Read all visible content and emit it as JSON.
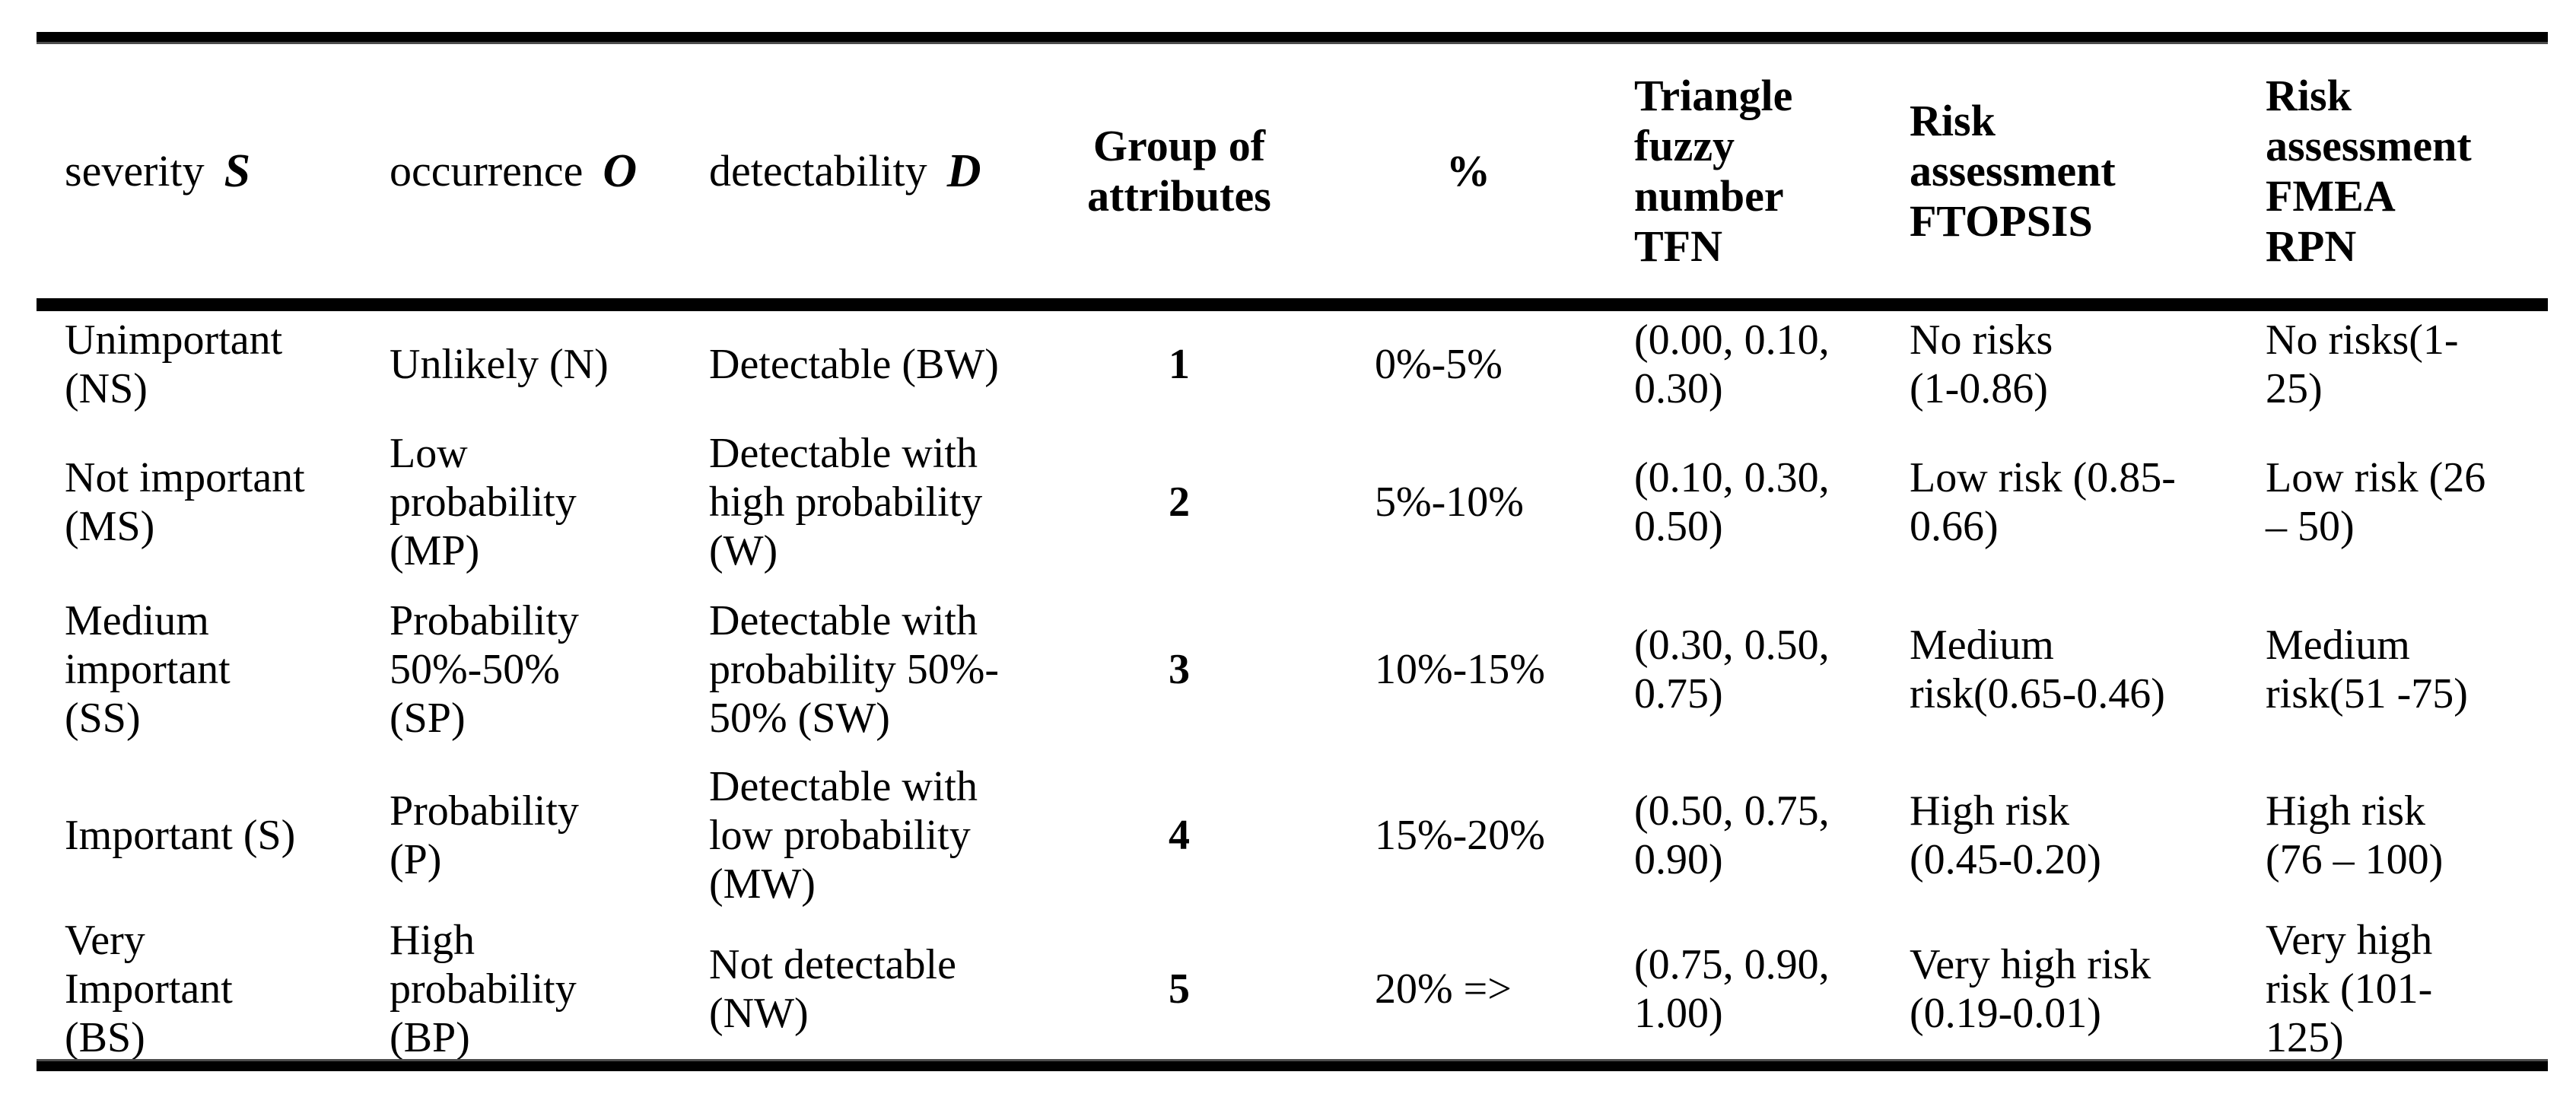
{
  "page": {
    "background": "#ffffff",
    "rule_color": "#000000"
  },
  "table": {
    "columns": [
      {
        "label": "severity",
        "var": "S"
      },
      {
        "label": "occurrence",
        "var": "O"
      },
      {
        "label": "detectability",
        "var": "D"
      },
      {
        "label": "Group of\nattributes"
      },
      {
        "label": "%"
      },
      {
        "label": "Triangle\nfuzzy\nnumber\nTFN"
      },
      {
        "label": "Risk\nassessment\nFTOPSIS"
      },
      {
        "label": "Risk\nassessment\nFMEA\nRPN"
      }
    ],
    "rows": [
      {
        "cells": [
          "Unimportant\n(NS)",
          "Unlikely (N)",
          "Detectable (BW)",
          "1",
          "0%-5%",
          "(0.00, 0.10,\n0.30)",
          "No risks\n(1-0.86)",
          "No risks(1-\n25)"
        ]
      },
      {
        "cells": [
          "Not important\n(MS)",
          "Low\nprobability\n(MP)",
          "Detectable with\nhigh probability\n(W)",
          "2",
          "5%-10%",
          "(0.10, 0.30,\n0.50)",
          "Low risk (0.85-\n0.66)",
          "Low risk (26\n– 50)"
        ]
      },
      {
        "cells": [
          "Medium\nimportant\n(SS)",
          "Probability\n50%-50%\n(SP)",
          "Detectable with\nprobability 50%-\n50% (SW)",
          "3",
          "10%-15%",
          "(0.30, 0.50,\n0.75)",
          "Medium\nrisk(0.65-0.46)",
          "Medium\nrisk(51 -75)"
        ]
      },
      {
        "cells": [
          "Important (S)",
          "Probability\n(P)",
          "Detectable with\nlow probability\n(MW)",
          "4",
          "15%-20%",
          "(0.50, 0.75,\n0.90)",
          "High risk\n(0.45-0.20)",
          "High risk\n(76 – 100)"
        ]
      },
      {
        "cells": [
          "Very\nImportant\n(BS)",
          "High\nprobability\n(BP)",
          "Not detectable\n(NW)",
          "5",
          "20% =>",
          "(0.75, 0.90,\n1.00)",
          "Very high risk\n(0.19-0.01)",
          "Very high\nrisk (101-\n125)"
        ]
      }
    ]
  }
}
